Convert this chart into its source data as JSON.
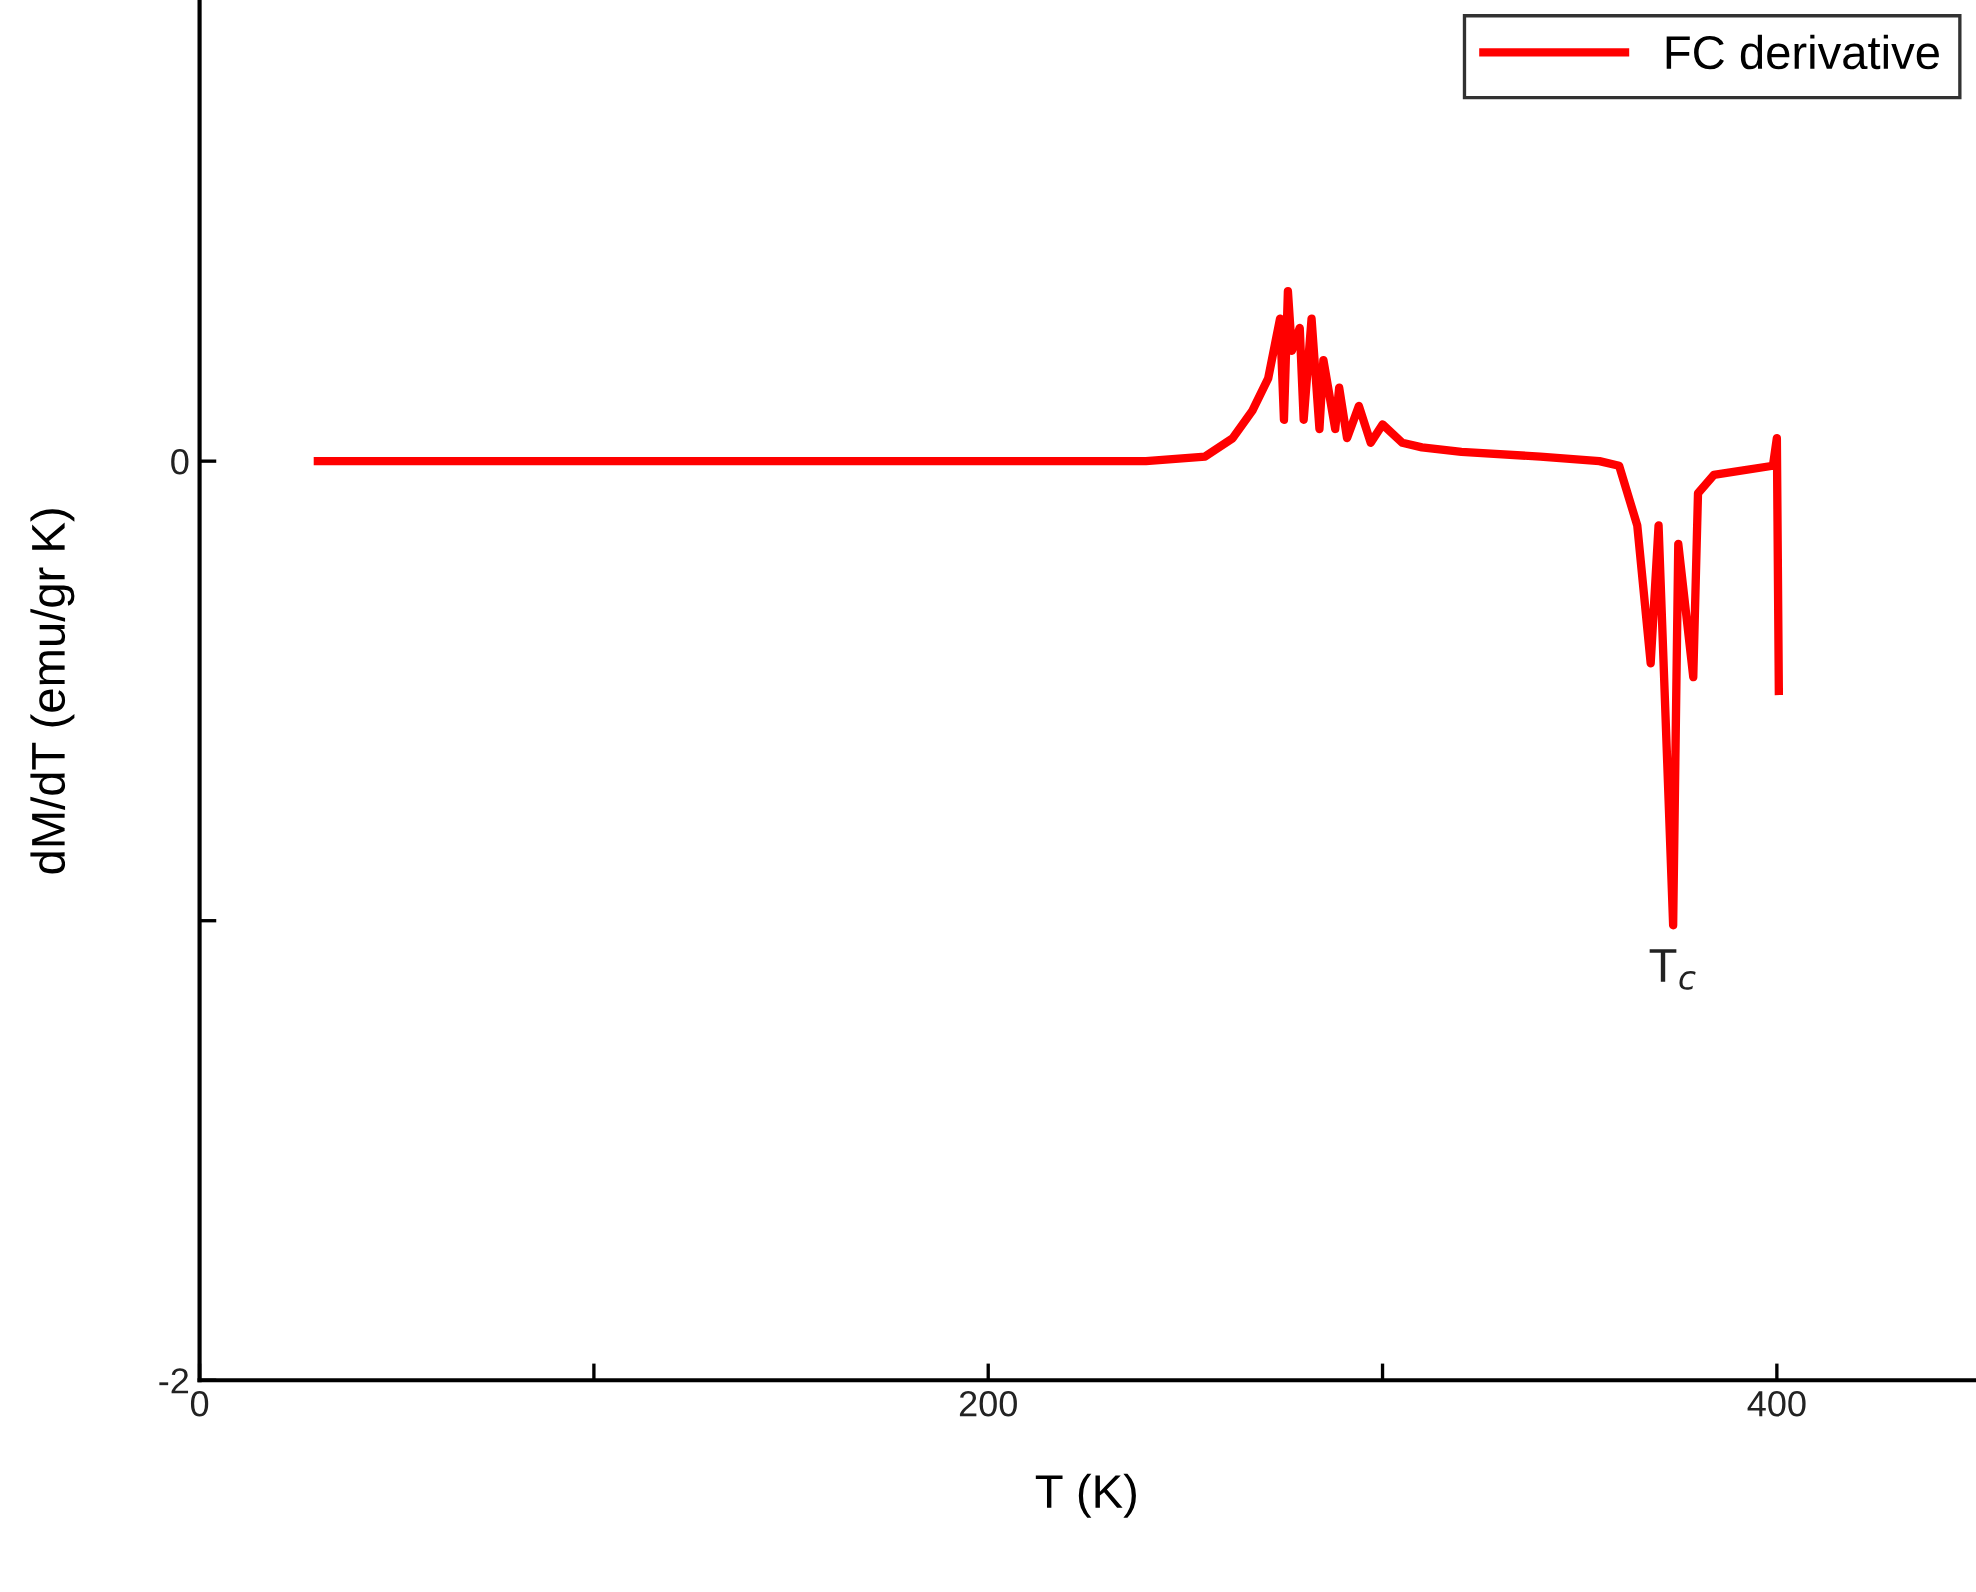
{
  "chart_data": {
    "type": "line",
    "xlabel": "T (K)",
    "ylabel": "dM/dT (emu/gr K)",
    "xlim": [
      0,
      450
    ],
    "ylim": [
      -2,
      1
    ],
    "xticks": [
      0,
      {
        "value": 100,
        "label": null
      },
      200,
      {
        "value": 300,
        "label": null
      },
      400
    ],
    "yticks": [
      -2,
      {
        "value": -1,
        "label": null
      },
      0
    ],
    "grid": false,
    "legend": "top right",
    "marker": "none",
    "line_style": "solid",
    "annotations": [
      {
        "text": "T$_{c}$",
        "x": 373.7,
        "y": -1.01
      }
    ],
    "series": [
      {
        "name": "FC derivative",
        "color": "#ff0000",
        "x": [
          30,
          100,
          180,
          240,
          255,
          262,
          267,
          271,
          274,
          275,
          276,
          277,
          279,
          280,
          282,
          284,
          285,
          288,
          289,
          291,
          294,
          297,
          300,
          305,
          310,
          320,
          340,
          355,
          360,
          364.6,
          368,
          370,
          373.7,
          375,
          378.8,
          380,
          384,
          399,
          400,
          400.5
        ],
        "values": [
          0,
          0,
          0,
          0,
          0.01,
          0.05,
          0.11,
          0.18,
          0.31,
          0.09,
          0.37,
          0.24,
          0.29,
          0.09,
          0.31,
          0.07,
          0.22,
          0.07,
          0.16,
          0.05,
          0.12,
          0.04,
          0.08,
          0.04,
          0.03,
          0.02,
          0.01,
          0,
          -0.01,
          -0.14,
          -0.44,
          -0.14,
          -1.01,
          -0.18,
          -0.47,
          -0.07,
          -0.03,
          -0.01,
          0.05,
          -0.5
        ]
      }
    ]
  }
}
